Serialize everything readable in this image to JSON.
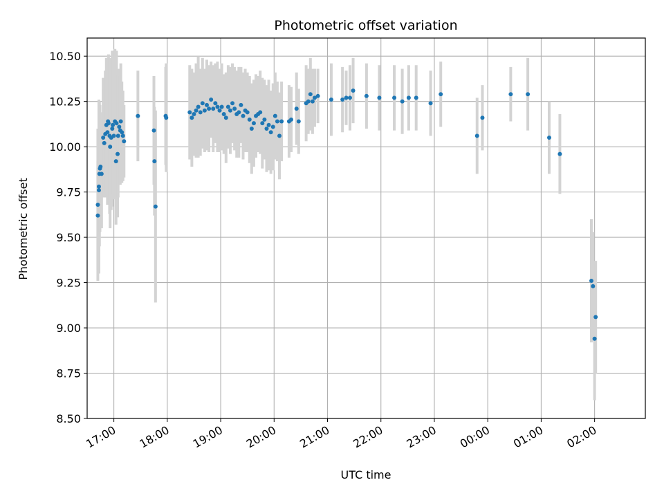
{
  "chart_data": {
    "type": "scatter",
    "title": "Photometric offset variation",
    "xlabel": "UTC time",
    "ylabel": "Photometric offset",
    "xlim_hours": [
      16.5,
      26.95
    ],
    "ylim": [
      8.5,
      10.6
    ],
    "grid": true,
    "legend": "none",
    "xticks": [
      {
        "hour": 17,
        "label": "17:00"
      },
      {
        "hour": 18,
        "label": "18:00"
      },
      {
        "hour": 19,
        "label": "19:00"
      },
      {
        "hour": 20,
        "label": "20:00"
      },
      {
        "hour": 21,
        "label": "21:00"
      },
      {
        "hour": 22,
        "label": "22:00"
      },
      {
        "hour": 23,
        "label": "23:00"
      },
      {
        "hour": 24,
        "label": "00:00"
      },
      {
        "hour": 25,
        "label": "01:00"
      },
      {
        "hour": 26,
        "label": "02:00"
      }
    ],
    "yticks": [
      {
        "value": 8.5,
        "label": "8.50"
      },
      {
        "value": 8.75,
        "label": "8.75"
      },
      {
        "value": 9.0,
        "label": "9.00"
      },
      {
        "value": 9.25,
        "label": "9.25"
      },
      {
        "value": 9.5,
        "label": "9.50"
      },
      {
        "value": 9.75,
        "label": "9.75"
      },
      {
        "value": 10.0,
        "label": "10.00"
      },
      {
        "value": 10.25,
        "label": "10.25"
      },
      {
        "value": 10.5,
        "label": "10.50"
      }
    ],
    "marker_color": "#1f77b4",
    "errorbar_color": "#d3d3d3",
    "points": [
      [
        16.7,
        9.62,
        0.3
      ],
      [
        16.7,
        9.68,
        0.42
      ],
      [
        16.72,
        9.78,
        0.48
      ],
      [
        16.72,
        9.76,
        0.45
      ],
      [
        16.73,
        9.85,
        0.4
      ],
      [
        16.74,
        9.88,
        0.35
      ],
      [
        16.75,
        9.89,
        0.3
      ],
      [
        16.77,
        9.85,
        0.3
      ],
      [
        16.8,
        10.05,
        0.33
      ],
      [
        16.82,
        10.02,
        0.3
      ],
      [
        16.84,
        10.07,
        0.35
      ],
      [
        16.86,
        10.12,
        0.37
      ],
      [
        16.88,
        10.08,
        0.4
      ],
      [
        16.89,
        10.14,
        0.35
      ],
      [
        16.9,
        10.13,
        0.38
      ],
      [
        16.92,
        10.06,
        0.43
      ],
      [
        16.93,
        10.0,
        0.45
      ],
      [
        16.95,
        10.05,
        0.4
      ],
      [
        16.97,
        10.1,
        0.43
      ],
      [
        16.98,
        10.12,
        0.38
      ],
      [
        17.0,
        10.06,
        0.35
      ],
      [
        17.02,
        10.14,
        0.4
      ],
      [
        17.04,
        9.92,
        0.35
      ],
      [
        17.05,
        10.13,
        0.4
      ],
      [
        17.07,
        9.96,
        0.35
      ],
      [
        17.08,
        10.06,
        0.34
      ],
      [
        17.1,
        10.11,
        0.32
      ],
      [
        17.12,
        10.09,
        0.3
      ],
      [
        17.13,
        10.14,
        0.32
      ],
      [
        17.15,
        10.08,
        0.28
      ],
      [
        17.17,
        10.06,
        0.25
      ],
      [
        17.19,
        10.03,
        0.2
      ],
      [
        17.45,
        10.17,
        0.25
      ],
      [
        17.75,
        10.09,
        0.3
      ],
      [
        17.76,
        9.92,
        0.3
      ],
      [
        17.78,
        9.67,
        0.53
      ],
      [
        17.97,
        10.17,
        0.27
      ],
      [
        17.98,
        10.16,
        0.3
      ],
      [
        18.42,
        10.19,
        0.26
      ],
      [
        18.46,
        10.16,
        0.27
      ],
      [
        18.5,
        10.18,
        0.23
      ],
      [
        18.54,
        10.2,
        0.26
      ],
      [
        18.58,
        10.22,
        0.28
      ],
      [
        18.62,
        10.19,
        0.24
      ],
      [
        18.66,
        10.24,
        0.25
      ],
      [
        18.7,
        10.2,
        0.23
      ],
      [
        18.74,
        10.23,
        0.25
      ],
      [
        18.78,
        10.21,
        0.24
      ],
      [
        18.82,
        10.26,
        0.21
      ],
      [
        18.86,
        10.21,
        0.24
      ],
      [
        18.9,
        10.24,
        0.22
      ],
      [
        18.94,
        10.22,
        0.25
      ],
      [
        18.98,
        10.2,
        0.23
      ],
      [
        19.02,
        10.22,
        0.24
      ],
      [
        19.06,
        10.18,
        0.22
      ],
      [
        19.1,
        10.16,
        0.25
      ],
      [
        19.14,
        10.22,
        0.23
      ],
      [
        19.18,
        10.2,
        0.24
      ],
      [
        19.22,
        10.24,
        0.22
      ],
      [
        19.26,
        10.21,
        0.23
      ],
      [
        19.3,
        10.18,
        0.24
      ],
      [
        19.34,
        10.19,
        0.25
      ],
      [
        19.38,
        10.23,
        0.21
      ],
      [
        19.42,
        10.17,
        0.24
      ],
      [
        19.46,
        10.2,
        0.23
      ],
      [
        19.5,
        10.19,
        0.22
      ],
      [
        19.54,
        10.15,
        0.24
      ],
      [
        19.58,
        10.1,
        0.25
      ],
      [
        19.62,
        10.13,
        0.24
      ],
      [
        19.66,
        10.17,
        0.23
      ],
      [
        19.7,
        10.18,
        0.21
      ],
      [
        19.74,
        10.19,
        0.23
      ],
      [
        19.78,
        10.13,
        0.25
      ],
      [
        19.82,
        10.15,
        0.22
      ],
      [
        19.86,
        10.1,
        0.24
      ],
      [
        19.9,
        10.12,
        0.25
      ],
      [
        19.94,
        10.08,
        0.23
      ],
      [
        19.98,
        10.11,
        0.24
      ],
      [
        20.02,
        10.17,
        0.24
      ],
      [
        20.06,
        10.14,
        0.22
      ],
      [
        20.1,
        10.06,
        0.24
      ],
      [
        20.14,
        10.14,
        0.22
      ],
      [
        20.28,
        10.14,
        0.2
      ],
      [
        20.32,
        10.15,
        0.18
      ],
      [
        20.42,
        10.21,
        0.2
      ],
      [
        20.46,
        10.14,
        0.18
      ],
      [
        20.6,
        10.24,
        0.21
      ],
      [
        20.64,
        10.25,
        0.18
      ],
      [
        20.68,
        10.29,
        0.2
      ],
      [
        20.72,
        10.25,
        0.18
      ],
      [
        20.76,
        10.27,
        0.16
      ],
      [
        20.82,
        10.28,
        0.15
      ],
      [
        21.07,
        10.26,
        0.2
      ],
      [
        21.28,
        10.26,
        0.18
      ],
      [
        21.35,
        10.27,
        0.15
      ],
      [
        21.42,
        10.27,
        0.18
      ],
      [
        21.48,
        10.31,
        0.18
      ],
      [
        21.73,
        10.28,
        0.18
      ],
      [
        21.97,
        10.27,
        0.18
      ],
      [
        22.25,
        10.27,
        0.18
      ],
      [
        22.4,
        10.25,
        0.18
      ],
      [
        22.52,
        10.27,
        0.18
      ],
      [
        22.66,
        10.27,
        0.18
      ],
      [
        22.93,
        10.24,
        0.18
      ],
      [
        23.12,
        10.29,
        0.18
      ],
      [
        23.8,
        10.06,
        0.21
      ],
      [
        23.9,
        10.16,
        0.18
      ],
      [
        24.43,
        10.29,
        0.15
      ],
      [
        24.75,
        10.29,
        0.2
      ],
      [
        25.15,
        10.05,
        0.2
      ],
      [
        25.35,
        9.96,
        0.22
      ],
      [
        25.94,
        9.26,
        0.34
      ],
      [
        25.97,
        9.23,
        0.3
      ],
      [
        26.0,
        8.94,
        0.34
      ],
      [
        26.02,
        9.06,
        0.31
      ]
    ]
  }
}
